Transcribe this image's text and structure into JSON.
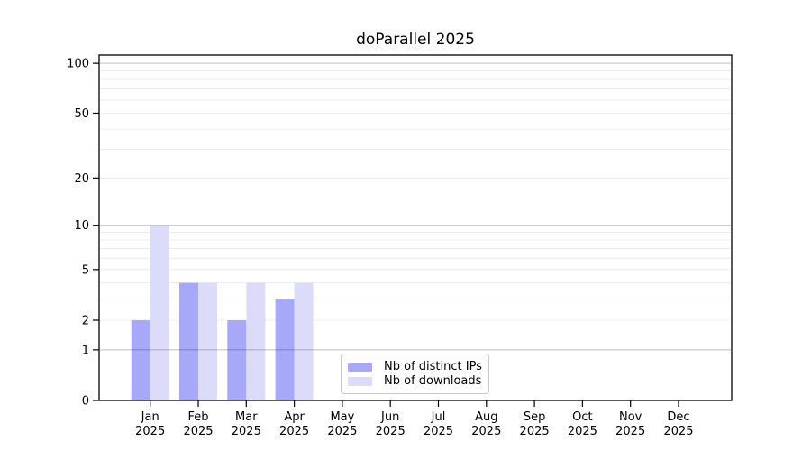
{
  "figure": {
    "title": "doParallel 2025"
  },
  "chart_data": {
    "type": "bar",
    "title": "doParallel 2025",
    "x_categories": [
      "Jan",
      "Feb",
      "Mar",
      "Apr",
      "May",
      "Jun",
      "Jul",
      "Aug",
      "Sep",
      "Oct",
      "Nov",
      "Dec"
    ],
    "x_year": "2025",
    "series": [
      {
        "name": "Nb of distinct IPs",
        "color": "#a8a8f8",
        "values": [
          2,
          4,
          2,
          3,
          0,
          0,
          0,
          0,
          0,
          0,
          0,
          0
        ]
      },
      {
        "name": "Nb of downloads",
        "color": "#dcdcfa",
        "values": [
          10,
          4,
          4,
          4,
          0,
          0,
          0,
          0,
          0,
          0,
          0,
          0
        ]
      }
    ],
    "y_ticks": [
      0,
      1,
      2,
      5,
      10,
      20,
      50,
      100
    ],
    "y_minor_gridlines": [
      2,
      3,
      4,
      5,
      6,
      7,
      8,
      9,
      20,
      30,
      40,
      50,
      60,
      70,
      80,
      90
    ],
    "y_major_gridlines": [
      1,
      10,
      100
    ],
    "y_scale": "log10(1+x)",
    "ylim": [
      0,
      112
    ],
    "grid": "horizontal",
    "legend_position": "inside-bottom-center",
    "colors": {
      "minor_grid": "#ececec",
      "major_grid": "rgba(0,0,0,0.25)",
      "spine": "#000000"
    }
  }
}
